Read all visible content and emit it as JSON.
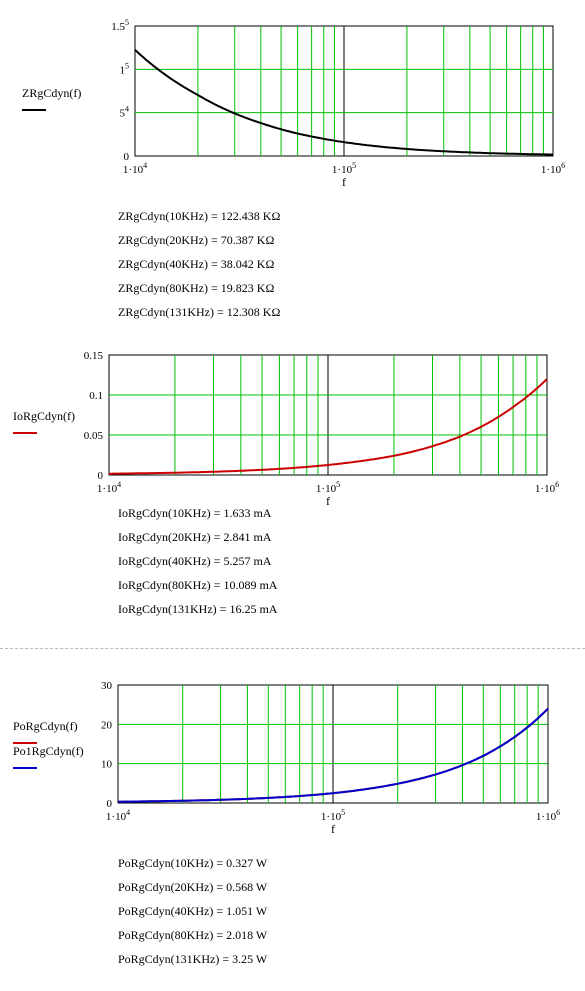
{
  "chart_data": [
    {
      "type": "line",
      "xlabel": "f",
      "xscale": "log",
      "xlim": [
        10000,
        1000000
      ],
      "ylim": [
        0,
        150000
      ],
      "grid": true,
      "xticks": [
        {
          "m": "1",
          "e": "4"
        },
        {
          "m": "1",
          "e": "5"
        },
        {
          "m": "1",
          "e": "6"
        }
      ],
      "yticks": [
        {
          "v": 0,
          "m": "0",
          "e": ""
        },
        {
          "v": 50000,
          "m": "5",
          "e": "4"
        },
        {
          "v": 100000,
          "m": "1",
          "e": "5"
        },
        {
          "v": 150000,
          "m": "1.5",
          "e": "5"
        }
      ],
      "series": [
        {
          "name": "ZRgCdyn(f)",
          "color": "#000000",
          "x": [
            10000,
            20000,
            40000,
            80000,
            131000,
            200000,
            400000,
            1000000
          ],
          "y": [
            122438,
            70387,
            38042,
            19823,
            12308,
            8100,
            4100,
            1640
          ]
        }
      ],
      "results": [
        {
          "label": "ZRgCdyn(10KHz)",
          "value": "122.438",
          "unit": "KΩ"
        },
        {
          "label": "ZRgCdyn(20KHz)",
          "value": "70.387",
          "unit": "KΩ"
        },
        {
          "label": "ZRgCdyn(40KHz)",
          "value": "38.042",
          "unit": "KΩ"
        },
        {
          "label": "ZRgCdyn(80KHz)",
          "value": "19.823",
          "unit": "KΩ"
        },
        {
          "label": "ZRgCdyn(131KHz)",
          "value": "12.308",
          "unit": "KΩ"
        }
      ]
    },
    {
      "type": "line",
      "xlabel": "f",
      "xscale": "log",
      "xlim": [
        10000,
        1000000
      ],
      "ylim": [
        0,
        0.15
      ],
      "grid": true,
      "xticks": [
        {
          "m": "1",
          "e": "4"
        },
        {
          "m": "1",
          "e": "5"
        },
        {
          "m": "1",
          "e": "6"
        }
      ],
      "yticks": [
        {
          "v": 0,
          "m": "0",
          "e": ""
        },
        {
          "v": 0.05,
          "m": "0.05",
          "e": ""
        },
        {
          "v": 0.1,
          "m": "0.1",
          "e": ""
        },
        {
          "v": 0.15,
          "m": "0.15",
          "e": ""
        }
      ],
      "series": [
        {
          "name": "IoRgCdyn(f)",
          "color": "#cc0000",
          "x": [
            10000,
            20000,
            40000,
            80000,
            131000,
            200000,
            400000,
            700000,
            1000000
          ],
          "y": [
            0.001633,
            0.002841,
            0.005257,
            0.010089,
            0.01625,
            0.024,
            0.048,
            0.085,
            0.12
          ]
        }
      ],
      "results": [
        {
          "label": "IoRgCdyn(10KHz)",
          "value": "1.633",
          "unit": "mA"
        },
        {
          "label": "IoRgCdyn(20KHz)",
          "value": "2.841",
          "unit": "mA"
        },
        {
          "label": "IoRgCdyn(40KHz)",
          "value": "5.257",
          "unit": "mA"
        },
        {
          "label": "IoRgCdyn(80KHz)",
          "value": "10.089",
          "unit": "mA"
        },
        {
          "label": "IoRgCdyn(131KHz)",
          "value": "16.25",
          "unit": "mA"
        }
      ]
    },
    {
      "type": "line",
      "xlabel": "f",
      "xscale": "log",
      "xlim": [
        10000,
        1000000
      ],
      "ylim": [
        0,
        30
      ],
      "grid": true,
      "xticks": [
        {
          "m": "1",
          "e": "4"
        },
        {
          "m": "1",
          "e": "5"
        },
        {
          "m": "1",
          "e": "6"
        }
      ],
      "yticks": [
        {
          "v": 0,
          "m": "0",
          "e": ""
        },
        {
          "v": 10,
          "m": "10",
          "e": ""
        },
        {
          "v": 20,
          "m": "20",
          "e": ""
        },
        {
          "v": 30,
          "m": "30",
          "e": ""
        }
      ],
      "series": [
        {
          "name": "PoRgCdyn(f)",
          "color": "#cc0000",
          "x": [
            10000,
            20000,
            40000,
            80000,
            131000,
            200000,
            400000,
            700000,
            1000000
          ],
          "y": [
            0.327,
            0.568,
            1.051,
            2.018,
            3.25,
            4.9,
            9.6,
            16.8,
            24
          ]
        },
        {
          "name": "Po1RgCdyn(f)",
          "color": "#0000cc",
          "x": [
            10000,
            20000,
            40000,
            80000,
            131000,
            200000,
            400000,
            700000,
            1000000
          ],
          "y": [
            0.327,
            0.568,
            1.051,
            2.018,
            3.25,
            4.9,
            9.6,
            16.8,
            24
          ]
        }
      ],
      "results": [
        {
          "label": "PoRgCdyn(10KHz)",
          "value": "0.327",
          "unit": "W"
        },
        {
          "label": "PoRgCdyn(20KHz)",
          "value": "0.568",
          "unit": "W"
        },
        {
          "label": "PoRgCdyn(40KHz)",
          "value": "1.051",
          "unit": "W"
        },
        {
          "label": "PoRgCdyn(80KHz)",
          "value": "2.018",
          "unit": "W"
        },
        {
          "label": "PoRgCdyn(131KHz)",
          "value": "3.25",
          "unit": "W"
        }
      ]
    }
  ]
}
